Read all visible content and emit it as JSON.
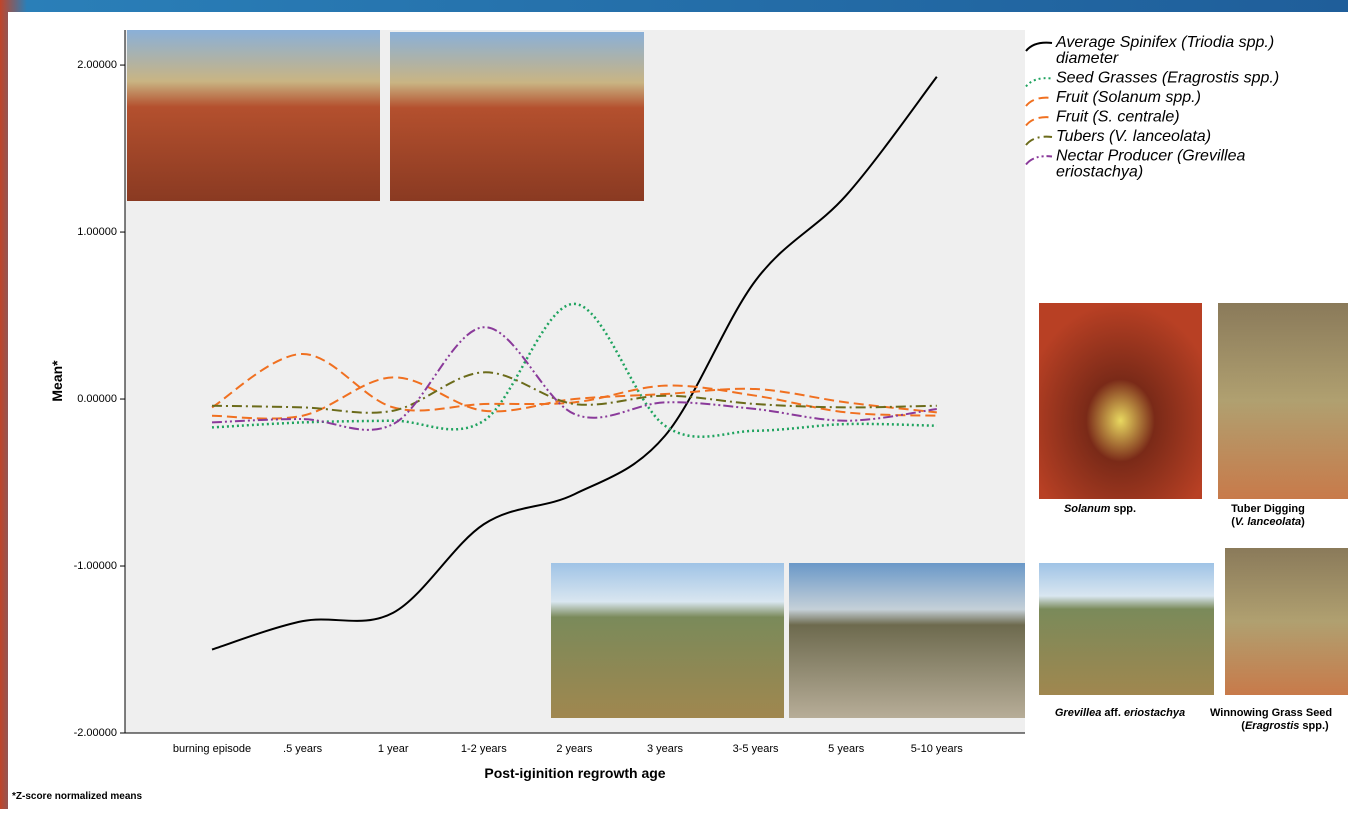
{
  "chart_data": {
    "type": "line",
    "y_label": "Mean*",
    "x_label": "Post-iginition regrowth age",
    "footnote": "*Z-score normalized means",
    "categories": [
      "burning episode",
      ".5 years",
      "1 year",
      "1-2 years",
      "2 years",
      "3 years",
      "3-5 years",
      "5 years",
      "5-10 years"
    ],
    "ylim": [
      -2,
      2.21
    ],
    "yticks": [
      {
        "value": 2,
        "label": "2.00000"
      },
      {
        "value": 1,
        "label": "1.00000"
      },
      {
        "value": 0,
        "label": "0.00000"
      },
      {
        "value": -1,
        "label": "-1.00000"
      },
      {
        "value": -2,
        "label": "-2.00000"
      }
    ],
    "series": [
      {
        "name": "Average Spinifex (Triodia spp.) diameter",
        "color": "#000000",
        "dash": "solid",
        "values": [
          -1.5,
          -1.33,
          -1.28,
          -0.75,
          -0.57,
          -0.22,
          0.71,
          1.22,
          1.93
        ]
      },
      {
        "name": "Seed Grasses (Eragrostis spp.)",
        "color": "#1fa35f",
        "dash": "dotted",
        "values": [
          -0.17,
          -0.14,
          -0.13,
          -0.13,
          0.57,
          -0.16,
          -0.19,
          -0.15,
          -0.16
        ]
      },
      {
        "name": "Fruit (Solanum spp.)",
        "color": "#f07020",
        "dash": "dashed",
        "values": [
          -0.05,
          0.27,
          -0.05,
          -0.03,
          -0.02,
          0.08,
          0.02,
          -0.08,
          -0.1
        ]
      },
      {
        "name": "Fruit (S. centrale)",
        "color": "#f07020",
        "dash": "dashed",
        "values": [
          -0.1,
          -0.1,
          0.13,
          -0.07,
          0.0,
          0.03,
          0.06,
          -0.02,
          -0.08
        ]
      },
      {
        "name": "Tubers (V. lanceolata)",
        "color": "#6b6b1a",
        "dash": "dashdot",
        "values": [
          -0.04,
          -0.05,
          -0.07,
          0.16,
          -0.03,
          0.02,
          -0.03,
          -0.05,
          -0.04
        ]
      },
      {
        "name": "Nectar Producer (Grevillea eriostachya)",
        "color": "#8a3a9a",
        "dash": "dashdotdot",
        "values": [
          -0.14,
          -0.12,
          -0.15,
          0.43,
          -0.09,
          -0.02,
          -0.06,
          -0.13,
          -0.06
        ]
      }
    ],
    "photo_captions": [
      [
        [
          "Solanum",
          " spp."
        ]
      ],
      [
        [
          "Tuber Digging"
        ],
        [
          "(",
          "V. lanceolata",
          ")"
        ]
      ],
      [
        [
          "Grevillea",
          " aff. ",
          "eriostachya"
        ]
      ],
      [
        [
          "Winnowing Grass Seed"
        ],
        [
          "(",
          "Eragrostis",
          " spp.)"
        ]
      ]
    ]
  }
}
